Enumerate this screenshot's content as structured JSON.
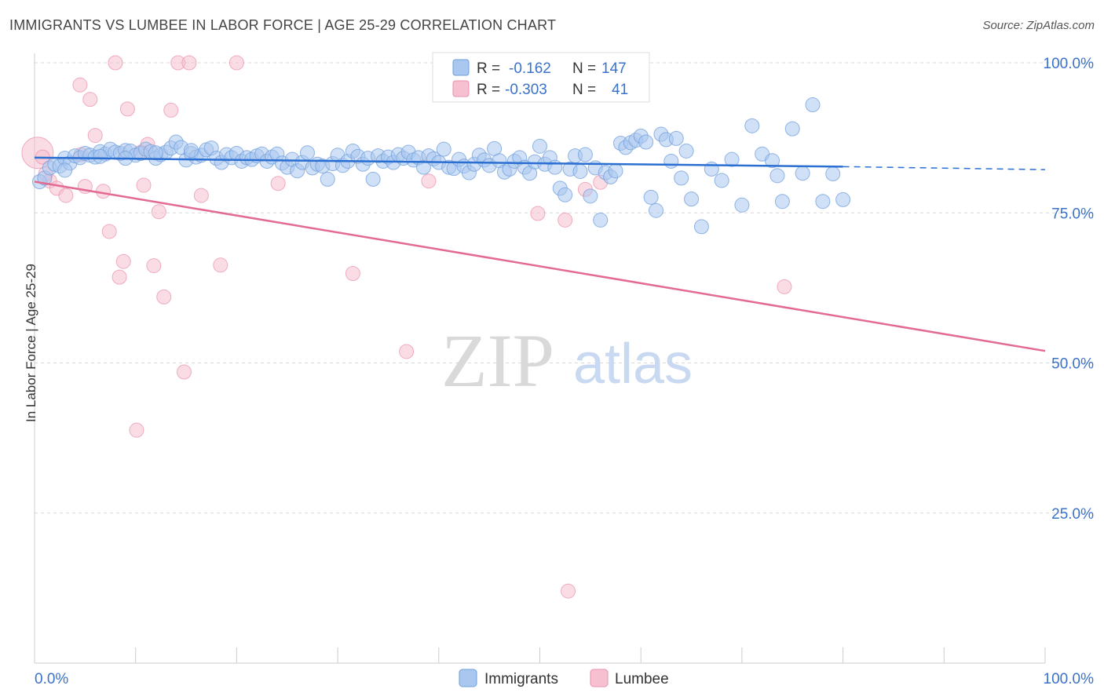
{
  "header": {
    "title": "IMMIGRANTS VS LUMBEE IN LABOR FORCE | AGE 25-29 CORRELATION CHART",
    "source": "Source: ZipAtlas.com"
  },
  "watermark": {
    "zip": "ZIP",
    "atlas": "atlas"
  },
  "legend_box": {
    "rows": [
      {
        "r_label": "R =",
        "r_value": "-0.162",
        "n_label": "N =",
        "n_value": "147"
      },
      {
        "r_label": "R =",
        "r_value": "-0.303",
        "n_label": "N =",
        "n_value": "41"
      }
    ]
  },
  "colors": {
    "blue_fill": "#a9c7ef",
    "blue_stroke": "#6f9fdc",
    "blue_line": "#2a6fd1",
    "pink_fill": "#f6c0d0",
    "pink_stroke": "#e98fab",
    "pink_line": "#e36a93",
    "value_text": "#3a72c9",
    "grid": "#d8d8d8"
  },
  "chart_data": {
    "type": "scatter",
    "title": "IMMIGRANTS VS LUMBEE IN LABOR FORCE | AGE 25-29 CORRELATION CHART",
    "xlabel": "",
    "ylabel": "In Labor Force | Age 25-29",
    "xlim": [
      0,
      100
    ],
    "ylim": [
      0,
      104
    ],
    "x_tick_labels": [
      "0.0%",
      "100.0%"
    ],
    "y_ticks": [
      {
        "value": 25,
        "label": "25.0%"
      },
      {
        "value": 50,
        "label": "50.0%"
      },
      {
        "value": 75,
        "label": "75.0%"
      },
      {
        "value": 100,
        "label": "100.0%"
      }
    ],
    "bottom_legend": [
      "Immigrants",
      "Lumbee"
    ],
    "series": [
      {
        "name": "Immigrants",
        "r": -0.162,
        "n": 147,
        "trend": {
          "x0": 0,
          "y0": 84.2,
          "x1": 80,
          "y1": 82.7,
          "dash_to_x": 100,
          "dash_y": 82.2
        },
        "points": [
          [
            0.5,
            80.2
          ],
          [
            1,
            80.8
          ],
          [
            1.5,
            82.5
          ],
          [
            2,
            83.1
          ],
          [
            2.5,
            82.8
          ],
          [
            3,
            84.1
          ],
          [
            3.5,
            83.3
          ],
          [
            4,
            84.5
          ],
          [
            4.5,
            84.2
          ],
          [
            5,
            84.9
          ],
          [
            5.5,
            84.6
          ],
          [
            6,
            84.3
          ],
          [
            6.5,
            85.2
          ],
          [
            7,
            84.8
          ],
          [
            7.5,
            85.6
          ],
          [
            8,
            85.1
          ],
          [
            8.5,
            84.9
          ],
          [
            9,
            85.4
          ],
          [
            9.5,
            85.3
          ],
          [
            10,
            84.6
          ],
          [
            10.5,
            84.9
          ],
          [
            11,
            85.6
          ],
          [
            11.5,
            85.2
          ],
          [
            12,
            84.1
          ],
          [
            12.5,
            84.7
          ],
          [
            13,
            85.1
          ],
          [
            13.5,
            85.8
          ],
          [
            14,
            86.8
          ],
          [
            14.5,
            85.9
          ],
          [
            15,
            83.8
          ],
          [
            15.5,
            84.9
          ],
          [
            16,
            84.3
          ],
          [
            16.5,
            84.6
          ],
          [
            17,
            85.5
          ],
          [
            17.5,
            85.8
          ],
          [
            18,
            84.1
          ],
          [
            18.5,
            83.4
          ],
          [
            19,
            84.7
          ],
          [
            19.5,
            84.2
          ],
          [
            20,
            84.9
          ],
          [
            20.5,
            83.6
          ],
          [
            21,
            84.2
          ],
          [
            21.5,
            83.9
          ],
          [
            22,
            84.5
          ],
          [
            22.5,
            84.8
          ],
          [
            23,
            83.6
          ],
          [
            23.5,
            84.3
          ],
          [
            24,
            84.8
          ],
          [
            24.5,
            83.3
          ],
          [
            25,
            82.6
          ],
          [
            25.5,
            83.9
          ],
          [
            26,
            82.0
          ],
          [
            26.5,
            83.4
          ],
          [
            27,
            85.0
          ],
          [
            27.5,
            82.5
          ],
          [
            28,
            83.1
          ],
          [
            28.5,
            82.8
          ],
          [
            29,
            80.6
          ],
          [
            29.5,
            83.2
          ],
          [
            30,
            84.6
          ],
          [
            30.5,
            82.9
          ],
          [
            31,
            83.6
          ],
          [
            31.5,
            85.3
          ],
          [
            32,
            84.4
          ],
          [
            32.5,
            83.1
          ],
          [
            33,
            84.1
          ],
          [
            33.5,
            80.6
          ],
          [
            34,
            84.5
          ],
          [
            34.5,
            83.6
          ],
          [
            35,
            84.3
          ],
          [
            35.5,
            83.4
          ],
          [
            36,
            84.7
          ],
          [
            36.5,
            84.1
          ],
          [
            37,
            85.1
          ],
          [
            37.5,
            83.8
          ],
          [
            38,
            84.2
          ],
          [
            38.5,
            82.6
          ],
          [
            39,
            84.5
          ],
          [
            39.5,
            84.0
          ],
          [
            40,
            83.4
          ],
          [
            40.5,
            85.6
          ],
          [
            41,
            82.6
          ],
          [
            41.5,
            82.4
          ],
          [
            42,
            83.9
          ],
          [
            42.5,
            82.8
          ],
          [
            43,
            81.7
          ],
          [
            43.5,
            83.1
          ],
          [
            44,
            84.6
          ],
          [
            44.5,
            83.8
          ],
          [
            45,
            82.9
          ],
          [
            45.5,
            85.7
          ],
          [
            46,
            83.7
          ],
          [
            46.5,
            81.8
          ],
          [
            47,
            82.3
          ],
          [
            47.5,
            83.6
          ],
          [
            48,
            84.2
          ],
          [
            48.5,
            82.6
          ],
          [
            49,
            81.6
          ],
          [
            49.5,
            83.5
          ],
          [
            50,
            86.1
          ],
          [
            50.5,
            83.1
          ],
          [
            51,
            84.2
          ],
          [
            51.5,
            82.6
          ],
          [
            52,
            79.1
          ],
          [
            52.5,
            78.0
          ],
          [
            53,
            82.3
          ],
          [
            53.5,
            84.5
          ],
          [
            54,
            81.9
          ],
          [
            54.5,
            84.7
          ],
          [
            55,
            77.8
          ],
          [
            55.5,
            82.5
          ],
          [
            56,
            73.8
          ],
          [
            56.5,
            81.7
          ],
          [
            57,
            81.0
          ],
          [
            57.5,
            82.0
          ],
          [
            58,
            86.6
          ],
          [
            58.5,
            85.9
          ],
          [
            59,
            86.7
          ],
          [
            59.5,
            87.1
          ],
          [
            60,
            87.8
          ],
          [
            60.5,
            86.8
          ],
          [
            61,
            77.6
          ],
          [
            61.5,
            75.4
          ],
          [
            62,
            88.1
          ],
          [
            62.5,
            87.2
          ],
          [
            63,
            83.6
          ],
          [
            63.5,
            87.4
          ],
          [
            64,
            80.8
          ],
          [
            64.5,
            85.3
          ],
          [
            65,
            77.3
          ],
          [
            66,
            72.7
          ],
          [
            67,
            82.3
          ],
          [
            68,
            80.4
          ],
          [
            69,
            83.9
          ],
          [
            70,
            76.3
          ],
          [
            71,
            89.5
          ],
          [
            72,
            84.8
          ],
          [
            73,
            83.7
          ],
          [
            73.5,
            81.2
          ],
          [
            74,
            76.9
          ],
          [
            75,
            89.0
          ],
          [
            76,
            81.6
          ],
          [
            77,
            93.0
          ],
          [
            78,
            76.9
          ],
          [
            79,
            81.5
          ],
          [
            80,
            77.2
          ],
          [
            3,
            82.1
          ],
          [
            6.5,
            84.4
          ],
          [
            9,
            84.1
          ],
          [
            12,
            85.0
          ],
          [
            15.5,
            85.4
          ]
        ]
      },
      {
        "name": "Lumbee",
        "r": -0.303,
        "n": 41,
        "trend": {
          "x0": 0,
          "y0": 80.2,
          "x1": 100,
          "y1": 52.0
        },
        "points": [
          [
            0.3,
            85.0
          ],
          [
            0.8,
            84.3
          ],
          [
            1.5,
            80.3
          ],
          [
            2.2,
            79.1
          ],
          [
            3.1,
            77.9
          ],
          [
            4.5,
            96.3
          ],
          [
            5.0,
            79.4
          ],
          [
            5.5,
            93.9
          ],
          [
            6.0,
            87.9
          ],
          [
            6.8,
            78.6
          ],
          [
            7.4,
            71.9
          ],
          [
            8.0,
            100.0
          ],
          [
            8.4,
            64.3
          ],
          [
            8.8,
            66.9
          ],
          [
            9.2,
            92.3
          ],
          [
            10.1,
            38.8
          ],
          [
            10.8,
            79.6
          ],
          [
            11.2,
            86.4
          ],
          [
            11.8,
            66.2
          ],
          [
            12.3,
            75.2
          ],
          [
            12.8,
            61.0
          ],
          [
            13.5,
            92.1
          ],
          [
            14.2,
            100.0
          ],
          [
            14.8,
            48.5
          ],
          [
            15.3,
            100.0
          ],
          [
            16.5,
            77.9
          ],
          [
            18.4,
            66.3
          ],
          [
            20.0,
            100.0
          ],
          [
            24.1,
            79.9
          ],
          [
            31.5,
            64.9
          ],
          [
            36.8,
            51.9
          ],
          [
            39.0,
            80.3
          ],
          [
            49.8,
            74.9
          ],
          [
            52.5,
            73.8
          ],
          [
            52.8,
            12.0
          ],
          [
            54.5,
            78.9
          ],
          [
            56.0,
            80.1
          ],
          [
            74.2,
            62.7
          ],
          [
            10.5,
            85.1
          ],
          [
            4.6,
            84.7
          ],
          [
            1.1,
            81.5
          ]
        ]
      }
    ]
  }
}
